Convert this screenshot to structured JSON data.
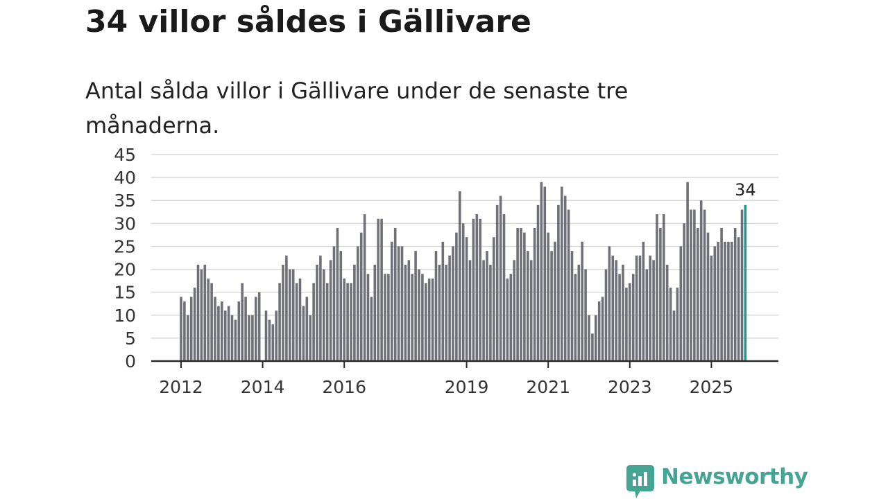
{
  "chart_data": {
    "type": "bar",
    "title": "34 villor såldes i Gällivare",
    "subtitle": "Antal sålda villor i Gällivare under de senaste tre månaderna.",
    "xlabel": "",
    "ylabel": "",
    "ylim": [
      0,
      45
    ],
    "yticks": [
      "0",
      "5",
      "10",
      "15",
      "20",
      "25",
      "30",
      "35",
      "40",
      "45"
    ],
    "xtick_labels": [
      {
        "label": "2012",
        "index": 0
      },
      {
        "label": "2014",
        "index": 24
      },
      {
        "label": "2016",
        "index": 48
      },
      {
        "label": "2019",
        "index": 84
      },
      {
        "label": "2021",
        "index": 108
      },
      {
        "label": "2023",
        "index": 132
      },
      {
        "label": "2025",
        "index": 156
      }
    ],
    "grid": true,
    "values": [
      14,
      13,
      10,
      14,
      16,
      21,
      20,
      21,
      18,
      17,
      14,
      12,
      13,
      11,
      12,
      10,
      9,
      13,
      17,
      14,
      10,
      10,
      14,
      15,
      0,
      11,
      9,
      8,
      11,
      17,
      21,
      23,
      20,
      20,
      17,
      18,
      12,
      14,
      10,
      17,
      21,
      23,
      20,
      17,
      22,
      25,
      29,
      24,
      18,
      17,
      17,
      21,
      25,
      28,
      32,
      19,
      14,
      21,
      31,
      31,
      19,
      19,
      26,
      29,
      25,
      25,
      21,
      22,
      19,
      24,
      20,
      19,
      17,
      18,
      18,
      24,
      21,
      26,
      21,
      23,
      25,
      28,
      37,
      30,
      27,
      22,
      31,
      32,
      31,
      22,
      24,
      21,
      27,
      34,
      36,
      32,
      18,
      19,
      22,
      29,
      29,
      28,
      24,
      22,
      29,
      34,
      39,
      38,
      28,
      24,
      26,
      34,
      38,
      36,
      33,
      24,
      19,
      21,
      26,
      20,
      10,
      6,
      10,
      13,
      14,
      20,
      25,
      23,
      22,
      19,
      21,
      16,
      17,
      19,
      23,
      23,
      26,
      20,
      23,
      22,
      32,
      29,
      32,
      21,
      16,
      11,
      16,
      25,
      30,
      39,
      33,
      33,
      29,
      35,
      33,
      28,
      23,
      25,
      26,
      29,
      26,
      26,
      26,
      29,
      27,
      33,
      34
    ],
    "highlight_index": 166,
    "highlight_label": "34",
    "bar_color": "#707078",
    "highlight_color": "#1c9a92",
    "grid_color": "#d9d9d9",
    "axis_color": "#2a2a2a"
  },
  "brand": {
    "name": "Newsworthy",
    "logo_icon": "bar-chart-speech-bubble-icon",
    "color": "#45a595"
  }
}
